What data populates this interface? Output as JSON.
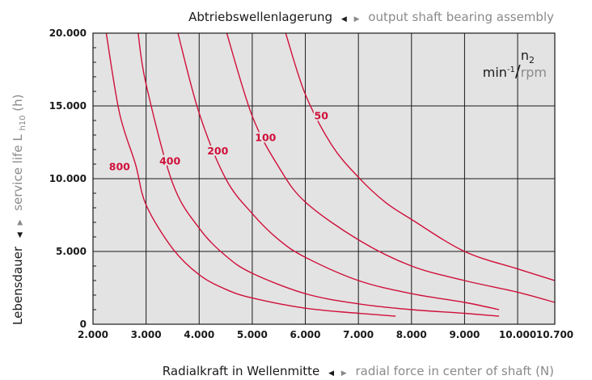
{
  "chart_data": {
    "type": "line",
    "title_de": "Abtriebswellenlagerung",
    "title_en": "output shaft bearing assembly",
    "xlabel_de": "Radialkraft in Wellenmitte",
    "xlabel_en": "radial force in center of shaft (N)",
    "ylabel_de": "Lebensdauer",
    "ylabel_en_pre": "service life L",
    "ylabel_en_sub": "h10",
    "ylabel_en_post": " (h)",
    "legend": {
      "symbol": "n",
      "symbol_sub": "2",
      "unit_de_base": "min",
      "unit_de_sup": "-1",
      "sep": "/",
      "unit_en": "rpm"
    },
    "xlim": [
      2000,
      10700
    ],
    "ylim": [
      0,
      20000
    ],
    "x_ticks": [
      2000,
      3000,
      4000,
      5000,
      6000,
      7000,
      8000,
      9000,
      10000,
      10700
    ],
    "x_tick_labels": [
      "2.000",
      "3.000",
      "4.000",
      "5.000",
      "6.000",
      "7.000",
      "8.000",
      "9.000",
      "10.000",
      "10.700"
    ],
    "y_ticks": [
      0,
      5000,
      10000,
      15000,
      20000
    ],
    "y_tick_labels": [
      "0",
      "5.000",
      "10.000",
      "15.000",
      "20.000"
    ],
    "grid": true,
    "series": [
      {
        "name": "800",
        "x": [
          2250,
          2500,
          2800,
          3000,
          3500,
          4000,
          4500,
          5000,
          6000,
          7000,
          7700
        ],
        "y": [
          20000,
          14500,
          11000,
          8200,
          5200,
          3400,
          2400,
          1800,
          1100,
          750,
          550
        ]
      },
      {
        "name": "400",
        "x": [
          2850,
          3000,
          3500,
          4000,
          4500,
          5000,
          6000,
          7000,
          8000,
          9000,
          9650
        ],
        "y": [
          20000,
          16500,
          9700,
          6600,
          4700,
          3500,
          2100,
          1400,
          1000,
          750,
          550
        ]
      },
      {
        "name": "200",
        "x": [
          3600,
          4000,
          4500,
          5000,
          5500,
          6000,
          7000,
          8000,
          9000,
          9650
        ],
        "y": [
          20000,
          14500,
          10000,
          7600,
          5800,
          4600,
          3000,
          2100,
          1500,
          1000
        ]
      },
      {
        "name": "100",
        "x": [
          4520,
          5000,
          5500,
          6000,
          7000,
          8000,
          9000,
          10000,
          10700
        ],
        "y": [
          20000,
          14300,
          10800,
          8400,
          5800,
          4000,
          3000,
          2200,
          1500
        ]
      },
      {
        "name": "50",
        "x": [
          5630,
          6000,
          6500,
          7000,
          7500,
          8000,
          9000,
          10000,
          10700
        ],
        "y": [
          20000,
          15800,
          12300,
          10100,
          8400,
          7200,
          5000,
          3800,
          3000
        ]
      }
    ],
    "curve_labels": [
      {
        "text": "800",
        "x": 2500,
        "y": 10800
      },
      {
        "text": "400",
        "x": 3450,
        "y": 11200
      },
      {
        "text": "200",
        "x": 4350,
        "y": 11900
      },
      {
        "text": "100",
        "x": 5250,
        "y": 12800
      },
      {
        "text": "50",
        "x": 6300,
        "y": 14300
      }
    ],
    "colors": {
      "curve": "#d0103a",
      "plot_bg": "#e3e3e3",
      "grid": "#1a1a1a",
      "secondary_text": "#8a8a8a"
    }
  }
}
